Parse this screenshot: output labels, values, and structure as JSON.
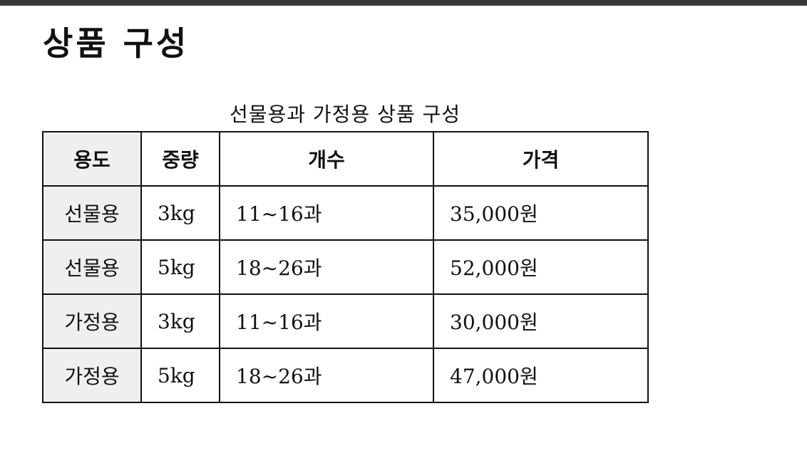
{
  "document": {
    "title": "상품 구성",
    "table_caption": "선물용과 가정용 상품 구성"
  },
  "table": {
    "headers": [
      "용도",
      "중량",
      "개수",
      "가격"
    ],
    "rows": [
      [
        "선물용",
        "3kg",
        "11~16과",
        "35,000원"
      ],
      [
        "선물용",
        "5kg",
        "18~26과",
        "52,000원"
      ],
      [
        "가정용",
        "3kg",
        "11~16과",
        "30,000원"
      ],
      [
        "가정용",
        "5kg",
        "18~26과",
        "47,000원"
      ]
    ]
  }
}
